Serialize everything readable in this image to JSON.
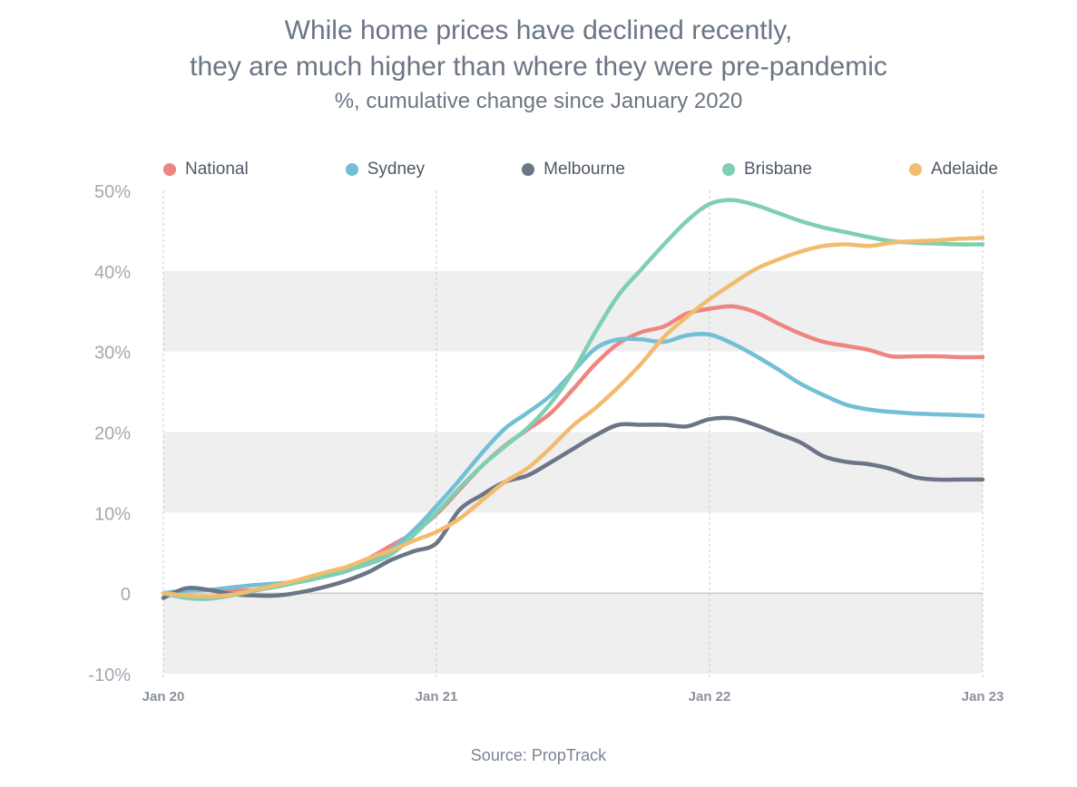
{
  "title_line1": "While home prices have declined recently,",
  "title_line2": "they are much higher than where they were pre-pandemic",
  "subtitle": "%, cumulative change since January 2020",
  "source": "Source: PropTrack",
  "chart_data": {
    "type": "line",
    "ylim": [
      -10,
      50
    ],
    "y_ticks": [
      50,
      40,
      30,
      20,
      10,
      0,
      -10
    ],
    "y_tick_labels": [
      "50%",
      "40%",
      "30%",
      "20%",
      "10%",
      "0",
      "-10%"
    ],
    "x_tick_labels": [
      "Jan 20",
      "Jan 21",
      "Jan 22",
      "Jan 23"
    ],
    "x": [
      "Jan 20",
      "Feb 20",
      "Mar 20",
      "Apr 20",
      "May 20",
      "Jun 20",
      "Jul 20",
      "Aug 20",
      "Sep 20",
      "Oct 20",
      "Nov 20",
      "Dec 20",
      "Jan 21",
      "Feb 21",
      "Mar 21",
      "Apr 21",
      "May 21",
      "Jun 21",
      "Jul 21",
      "Aug 21",
      "Sep 21",
      "Oct 21",
      "Nov 21",
      "Dec 21",
      "Jan 22",
      "Feb 22",
      "Mar 22",
      "Apr 22",
      "May 22",
      "Jun 22",
      "Jul 22",
      "Aug 22",
      "Sep 22",
      "Oct 22",
      "Nov 22",
      "Dec 22",
      "Jan 23"
    ],
    "grid": "alternating horizontal bands",
    "legend_position": "top",
    "series": [
      {
        "name": "National",
        "color": "#ee8580",
        "values": [
          0,
          0.3,
          0.4,
          0.3,
          0.4,
          0.9,
          1.4,
          2.2,
          3.1,
          4.3,
          5.9,
          7.5,
          9.8,
          12.8,
          15.8,
          18.3,
          20.3,
          22.3,
          25.3,
          28.5,
          31.0,
          32.4,
          33.1,
          34.7,
          35.3,
          35.6,
          34.9,
          33.5,
          32.2,
          31.2,
          30.7,
          30.2,
          29.4,
          29.4,
          29.4,
          29.3,
          29.3
        ]
      },
      {
        "name": "Sydney",
        "color": "#72bfd6",
        "values": [
          0,
          0.3,
          0.4,
          0.7,
          1.0,
          1.2,
          1.4,
          2.0,
          2.7,
          3.8,
          5.4,
          7.8,
          10.8,
          14.0,
          17.4,
          20.4,
          22.4,
          24.5,
          27.5,
          30.4,
          31.5,
          31.5,
          31.2,
          32.0,
          32.1,
          31.0,
          29.5,
          27.8,
          26.0,
          24.6,
          23.4,
          22.8,
          22.5,
          22.3,
          22.2,
          22.1,
          22.0
        ]
      },
      {
        "name": "Melbourne",
        "color": "#6b7587",
        "values": [
          -0.6,
          0.6,
          0.4,
          -0.1,
          -0.3,
          -0.3,
          0.1,
          0.7,
          1.5,
          2.6,
          4.1,
          5.2,
          6.2,
          10.3,
          12.2,
          13.8,
          14.6,
          16.2,
          17.9,
          19.6,
          20.9,
          20.9,
          20.9,
          20.7,
          21.6,
          21.7,
          20.9,
          19.8,
          18.7,
          17.0,
          16.3,
          16.0,
          15.4,
          14.4,
          14.1,
          14.1,
          14.1
        ]
      },
      {
        "name": "Brisbane",
        "color": "#7fcfb1",
        "values": [
          0,
          -0.6,
          -0.7,
          -0.3,
          0.3,
          0.8,
          1.4,
          2.0,
          2.8,
          3.6,
          4.8,
          7.2,
          10.0,
          13.0,
          15.8,
          18.2,
          20.5,
          23.5,
          27.5,
          32.5,
          37.0,
          40.2,
          43.3,
          46.2,
          48.3,
          48.8,
          48.2,
          47.2,
          46.2,
          45.4,
          44.8,
          44.2,
          43.7,
          43.5,
          43.4,
          43.3,
          43.3
        ]
      },
      {
        "name": "Adelaide",
        "color": "#f2bc6f",
        "values": [
          0,
          -0.3,
          -0.4,
          -0.2,
          0.4,
          1.0,
          1.7,
          2.5,
          3.2,
          4.3,
          5.3,
          6.5,
          7.6,
          9.2,
          11.5,
          13.8,
          15.5,
          18.0,
          20.8,
          23.0,
          25.6,
          28.5,
          31.8,
          34.3,
          36.5,
          38.4,
          40.2,
          41.4,
          42.4,
          43.1,
          43.3,
          43.1,
          43.5,
          43.7,
          43.8,
          44.0,
          44.1
        ]
      }
    ]
  }
}
